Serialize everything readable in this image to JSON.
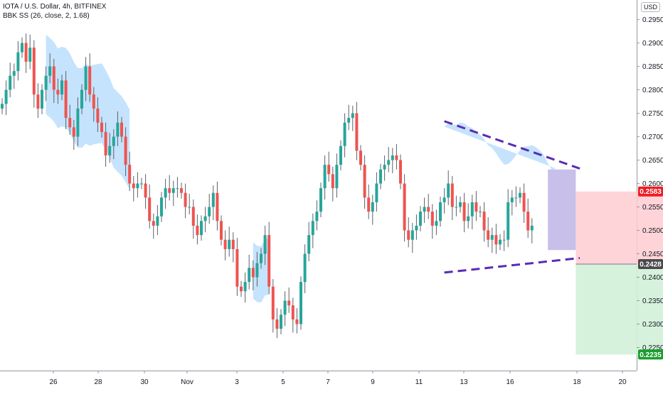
{
  "legend": {
    "symbol": "IOTA / U.S. Dollar, 4h, BITFINEX",
    "indicator": "BBK SS (26, close, 2, 1.68)"
  },
  "currency_label": "USD",
  "colors": {
    "up": "#26a69a",
    "down": "#ef5350",
    "wick": "#5d606b",
    "squeeze_fill": "#bbdefb",
    "squeeze_overlap": "#9b8ad8",
    "trend_line": "#5b2bb5",
    "stop_zone": "#ffcdd2",
    "target_zone": "#d2f0d8",
    "tag_stop": "#ef1c24",
    "tag_entry": "#4a4a4a",
    "tag_target": "#1b9e2d"
  },
  "chart_data": {
    "type": "candlestick",
    "symbol": "IOTA / U.S. Dollar",
    "timeframe": "4h",
    "exchange": "BITFINEX",
    "ylim": [
      0.2212,
      0.2972
    ],
    "y_ticks": [
      0.225,
      0.23,
      0.235,
      0.24,
      0.245,
      0.25,
      0.255,
      0.26,
      0.265,
      0.27,
      0.275,
      0.28,
      0.285,
      0.29,
      0.295
    ],
    "x_ticks": [
      "26",
      "28",
      "30",
      "Nov",
      "3",
      "5",
      "7",
      "9",
      "11",
      "13",
      "16",
      "18",
      "20"
    ],
    "price_tags": [
      {
        "label": "0.2583",
        "role": "stop",
        "value": 0.2583
      },
      {
        "label": "0.2428",
        "role": "entry",
        "value": 0.2428
      },
      {
        "label": "0.2235",
        "role": "target",
        "value": 0.2235
      }
    ],
    "candles_close": [
      0.277,
      0.28,
      0.283,
      0.284,
      0.288,
      0.29,
      0.286,
      0.289,
      0.279,
      0.276,
      0.28,
      0.283,
      0.285,
      0.28,
      0.279,
      0.282,
      0.274,
      0.272,
      0.27,
      0.276,
      0.28,
      0.285,
      0.279,
      0.276,
      0.273,
      0.271,
      0.266,
      0.268,
      0.27,
      0.273,
      0.27,
      0.264,
      0.26,
      0.259,
      0.26,
      0.26,
      0.257,
      0.252,
      0.251,
      0.253,
      0.257,
      0.259,
      0.258,
      0.259,
      0.259,
      0.258,
      0.255,
      0.255,
      0.251,
      0.249,
      0.252,
      0.253,
      0.255,
      0.258,
      0.252,
      0.248,
      0.246,
      0.248,
      0.246,
      0.238,
      0.237,
      0.239,
      0.242,
      0.24,
      0.243,
      0.245,
      0.249,
      0.238,
      0.231,
      0.229,
      0.232,
      0.235,
      0.234,
      0.231,
      0.23,
      0.239,
      0.245,
      0.249,
      0.252,
      0.254,
      0.259,
      0.264,
      0.262,
      0.259,
      0.264,
      0.268,
      0.273,
      0.274,
      0.275,
      0.267,
      0.264,
      0.257,
      0.254,
      0.256,
      0.26,
      0.263,
      0.264,
      0.265,
      0.266,
      0.265,
      0.26,
      0.25,
      0.248,
      0.25,
      0.251,
      0.254,
      0.255,
      0.254,
      0.251,
      0.252,
      0.256,
      0.257,
      0.26,
      0.255,
      0.255,
      0.256,
      0.252,
      0.253,
      0.256,
      0.254,
      0.254,
      0.25,
      0.248,
      0.249,
      0.247,
      0.248,
      0.248,
      0.256,
      0.257,
      0.257,
      0.258,
      0.254,
      0.25,
      0.251
    ],
    "open_first": 0.276,
    "trend_lines": [
      {
        "name": "upper",
        "from": {
          "bar": 111,
          "price": 0.2733
        },
        "to": {
          "bar": 145,
          "price": 0.2632
        }
      },
      {
        "name": "lower",
        "from": {
          "bar": 111,
          "price": 0.241
        },
        "to": {
          "bar": 145,
          "price": 0.2441
        }
      }
    ],
    "position": {
      "entry": 0.2428,
      "stop": 0.2583,
      "target": 0.2235,
      "bar_start": 144,
      "bar_end": 177
    },
    "squeeze_zones": [
      {
        "from_bar": 11,
        "to_bar": 32
      },
      {
        "from_bar": 63,
        "to_bar": 67
      },
      {
        "from_bar": 111,
        "to_bar": 144
      }
    ]
  }
}
